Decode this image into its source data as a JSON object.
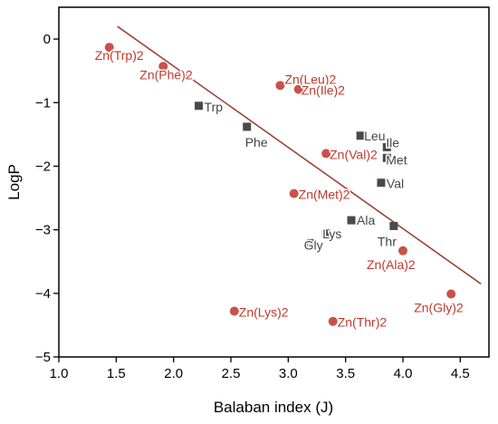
{
  "chart_data": {
    "type": "scatter",
    "xlabel": "Balaban index (J)",
    "ylabel": "LogP",
    "xlim": [
      1.0,
      4.75
    ],
    "ylim": [
      -5,
      0.5
    ],
    "xticks": [
      1.0,
      1.5,
      2.0,
      2.5,
      3.0,
      3.5,
      4.0,
      4.5
    ],
    "xtick_labels": [
      "1.0",
      "1.5",
      "2.0",
      "2.5",
      "3.0",
      "3.5",
      "4.0",
      "4.5"
    ],
    "yticks": [
      0,
      -1,
      -2,
      -3,
      -4,
      -5
    ],
    "ytick_labels": [
      "0",
      "−1",
      "−2",
      "−3",
      "−4",
      "−5"
    ],
    "colors": {
      "complex": "#c8524a",
      "complex_text": "#c0392b",
      "amino": "#4a4a4a",
      "fit": "#a0433b"
    },
    "series": [
      {
        "marker": "circle",
        "points": [
          {
            "label": "Zn(Trp)2",
            "x": 1.44,
            "y": -0.13
          },
          {
            "label": "Zn(Phe)2",
            "x": 1.91,
            "y": -0.43
          },
          {
            "label": "Zn(Leu)2",
            "x": 2.93,
            "y": -0.73
          },
          {
            "label": "Zn(Ile)2",
            "x": 3.09,
            "y": -0.79
          },
          {
            "label": "Zn(Val)2",
            "x": 3.33,
            "y": -1.8
          },
          {
            "label": "Zn(Met)2",
            "x": 3.05,
            "y": -2.43
          },
          {
            "label": "Zn(Ala)2",
            "x": 4.0,
            "y": -3.33
          },
          {
            "label": "Zn(Gly)2",
            "x": 4.42,
            "y": -4.01
          },
          {
            "label": "Zn(Lys)2",
            "x": 2.53,
            "y": -4.28
          },
          {
            "label": "Zn(Thr)2",
            "x": 3.39,
            "y": -4.44
          }
        ]
      },
      {
        "marker": "square",
        "points": [
          {
            "label": "Trp",
            "x": 2.22,
            "y": -1.05
          },
          {
            "label": "Phe",
            "x": 2.64,
            "y": -1.38
          },
          {
            "label": "Leu",
            "x": 3.63,
            "y": -1.52
          },
          {
            "label": "Ile",
            "x": 3.86,
            "y": -1.7
          },
          {
            "label": "Met",
            "x": 3.86,
            "y": -1.87
          },
          {
            "label": "Val",
            "x": 3.81,
            "y": -2.26
          },
          {
            "label": "Ala",
            "x": 3.55,
            "y": -2.85
          },
          {
            "label": "Thr",
            "x": 3.92,
            "y": -2.94
          },
          {
            "label": "Lys",
            "x": 3.33,
            "y": -3.06
          },
          {
            "label": "Gly",
            "x": 3.2,
            "y": -3.21
          }
        ]
      }
    ],
    "fit_line": {
      "x1": 1.51,
      "y1": 0.2,
      "x2": 4.68,
      "y2": -3.85
    }
  }
}
